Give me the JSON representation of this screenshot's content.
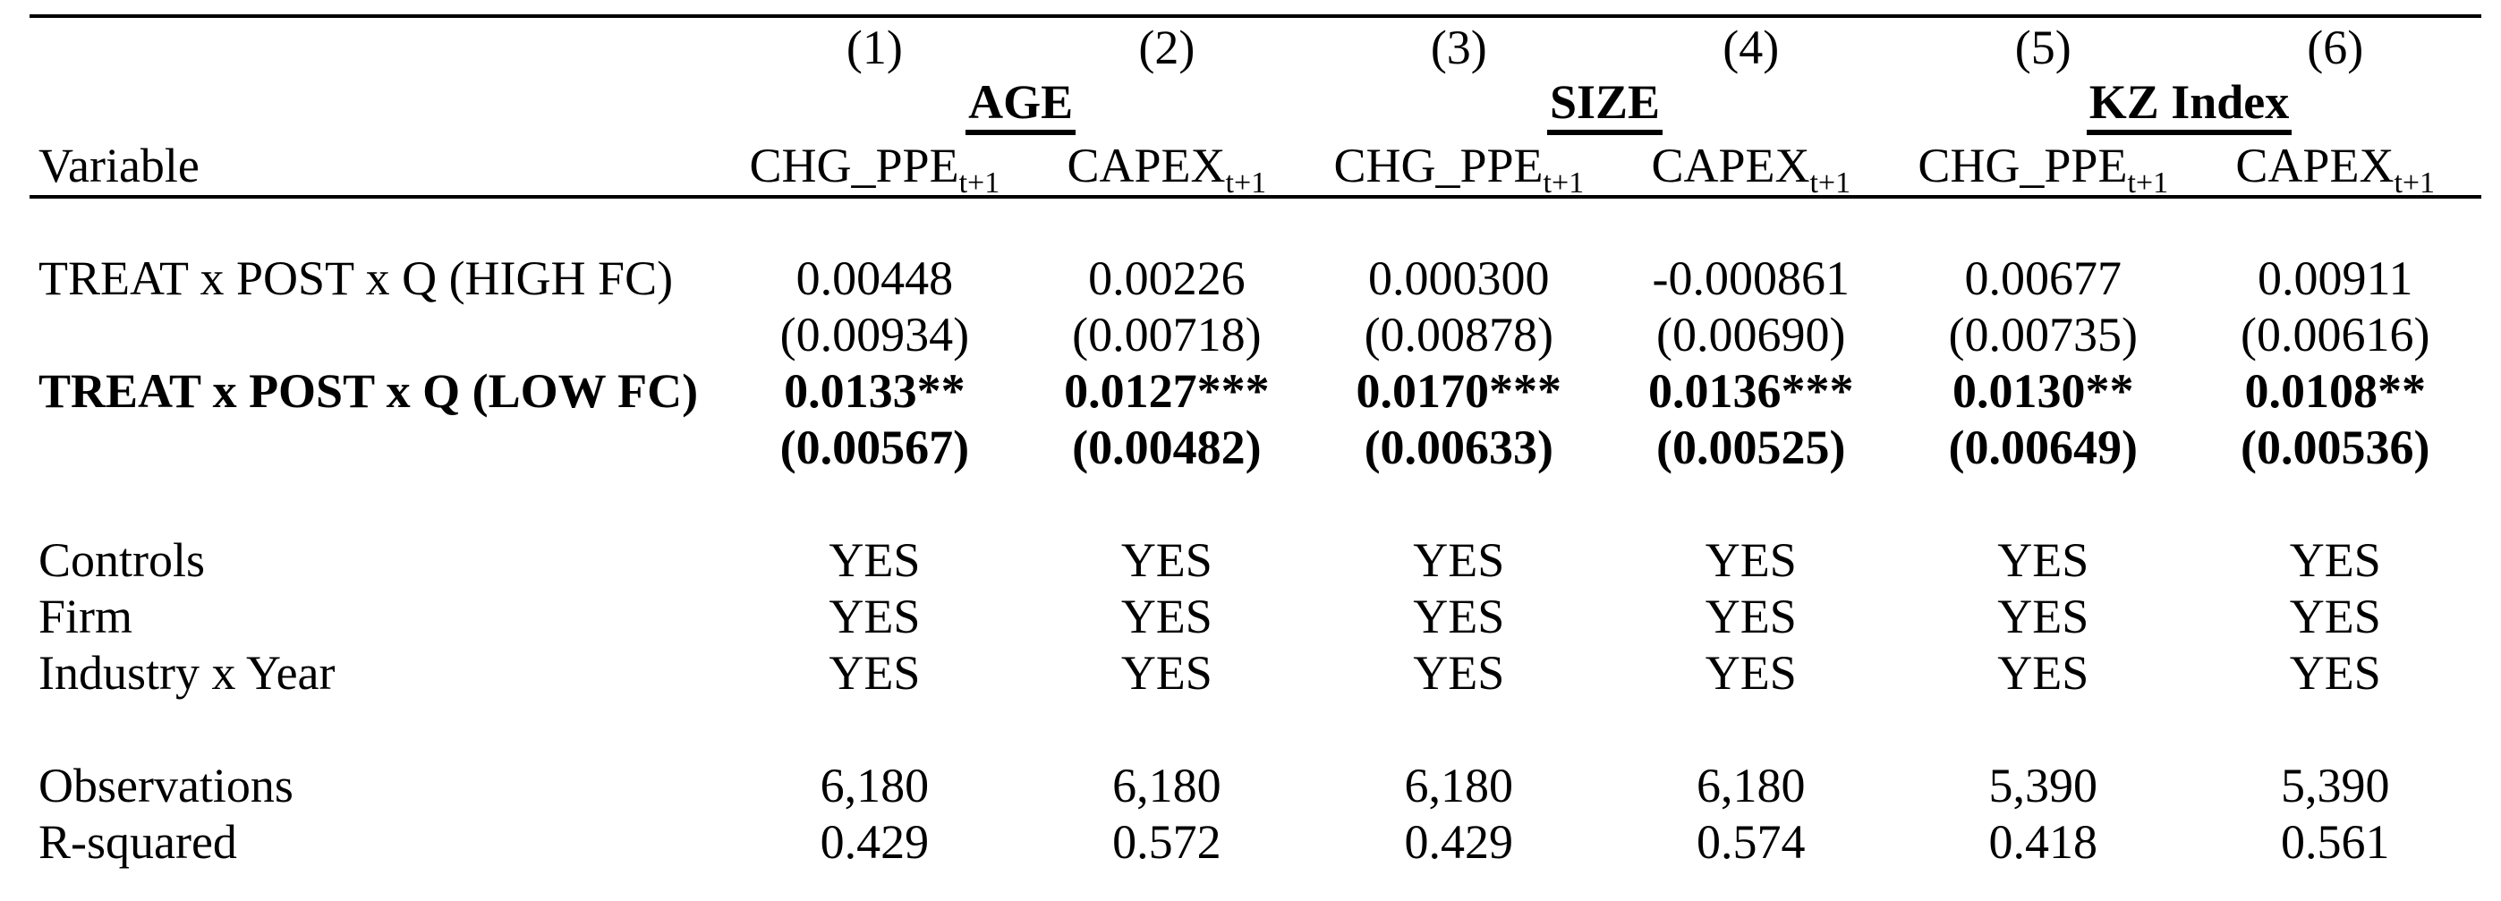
{
  "table": {
    "column_numbers": [
      "(1)",
      "(2)",
      "(3)",
      "(4)",
      "(5)",
      "(6)"
    ],
    "group_headers": [
      "AGE",
      "SIZE",
      "KZ Index"
    ],
    "row_header_label": "Variable",
    "dependent_variables": [
      {
        "base": "CHG_PPE",
        "sub": "t+1"
      },
      {
        "base": "CAPEX",
        "sub": "t+1"
      },
      {
        "base": "CHG_PPE",
        "sub": "t+1"
      },
      {
        "base": "CAPEX",
        "sub": "t+1"
      },
      {
        "base": "CHG_PPE",
        "sub": "t+1"
      },
      {
        "base": "CAPEX",
        "sub": "t+1"
      }
    ],
    "body_rows": [
      {
        "label": "TREAT x POST x Q (HIGH FC)",
        "bold": false,
        "values": [
          "0.00448",
          "0.00226",
          "0.000300",
          "-0.000861",
          "0.00677",
          "0.00911"
        ]
      },
      {
        "label": "",
        "bold": false,
        "values": [
          "(0.00934)",
          "(0.00718)",
          "(0.00878)",
          "(0.00690)",
          "(0.00735)",
          "(0.00616)"
        ]
      },
      {
        "label": "TREAT x POST x Q (LOW FC)",
        "bold": true,
        "values": [
          "0.0133**",
          "0.0127***",
          "0.0170***",
          "0.0136***",
          "0.0130**",
          "0.0108**"
        ]
      },
      {
        "label": "",
        "bold": true,
        "values": [
          "(0.00567)",
          "(0.00482)",
          "(0.00633)",
          "(0.00525)",
          "(0.00649)",
          "(0.00536)"
        ]
      },
      {
        "label": "Controls",
        "bold": false,
        "values": [
          "YES",
          "YES",
          "YES",
          "YES",
          "YES",
          "YES"
        ]
      },
      {
        "label": "Firm",
        "bold": false,
        "values": [
          "YES",
          "YES",
          "YES",
          "YES",
          "YES",
          "YES"
        ]
      },
      {
        "label": "Industry x Year",
        "bold": false,
        "values": [
          "YES",
          "YES",
          "YES",
          "YES",
          "YES",
          "YES"
        ]
      },
      {
        "label": "Observations",
        "bold": false,
        "values": [
          "6,180",
          "6,180",
          "6,180",
          "6,180",
          "5,390",
          "5,390"
        ]
      },
      {
        "label": "R-squared",
        "bold": false,
        "values": [
          "0.429",
          "0.572",
          "0.429",
          "0.574",
          "0.418",
          "0.561"
        ]
      }
    ],
    "colors": {
      "text": "#000000",
      "background": "#ffffff",
      "rule": "#000000"
    }
  }
}
